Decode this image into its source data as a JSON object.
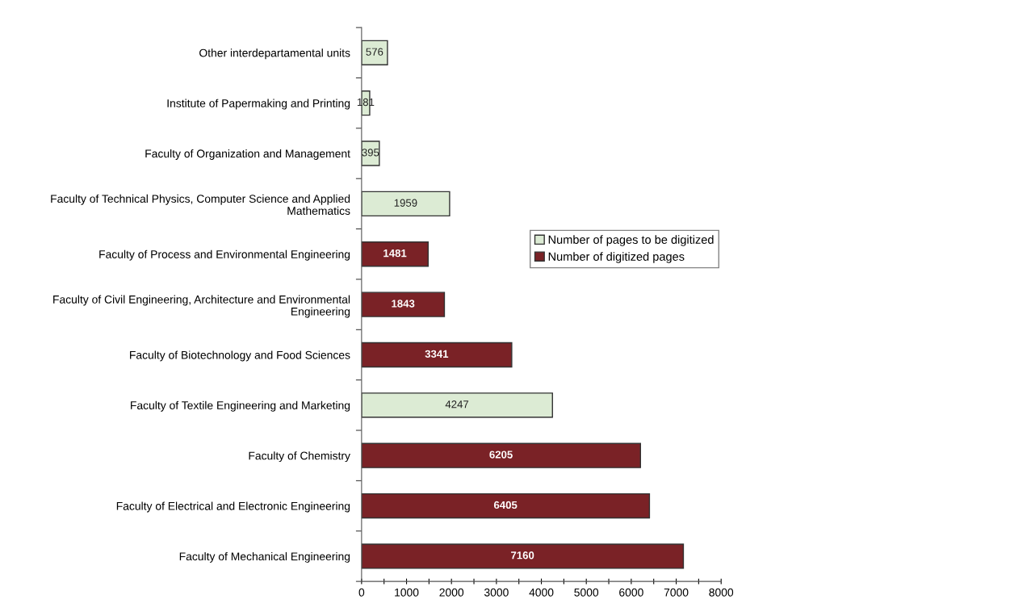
{
  "chart_data": {
    "type": "bar",
    "orientation": "horizontal",
    "categories": [
      "Other interdepartamental units",
      "Institute of Papermaking and Printing",
      "Faculty of Organization and Management",
      "Faculty of Technical Physics, Computer Science and Applied Mathematics",
      "Faculty of Process and Environmental Engineering",
      "Faculty of Civil Engineering, Architecture and Environmental Engineering",
      "Faculty of Biotechnology and Food Sciences",
      "Faculty of Textile Engineering and Marketing",
      "Faculty of Chemistry",
      "Faculty of Electrical and Electronic Engineering",
      "Faculty of Mechanical Engineering"
    ],
    "series": [
      {
        "name": "Number of pages to be digitized",
        "color": "#dcebd4",
        "values": [
          576,
          181,
          395,
          1959,
          null,
          null,
          null,
          4247,
          null,
          null,
          null
        ]
      },
      {
        "name": "Number of digitized pages",
        "color": "#7a2226",
        "values": [
          null,
          null,
          null,
          null,
          1481,
          1843,
          3341,
          null,
          6205,
          6405,
          7160
        ]
      }
    ],
    "xlim": [
      0,
      8000
    ],
    "xticks": [
      0,
      {
        "value": 500,
        "label": null
      },
      1000,
      {
        "value": 1500,
        "label": null
      },
      2000,
      {
        "value": 2500,
        "label": null
      },
      3000,
      {
        "value": 3500,
        "label": null
      },
      4000,
      {
        "value": 4500,
        "label": null
      },
      5000,
      {
        "value": 5500,
        "label": null
      },
      6000,
      {
        "value": 6500,
        "label": null
      },
      7000,
      {
        "value": 7500,
        "label": null
      },
      8000
    ],
    "data_labels": true,
    "grid": false,
    "legend": "right"
  }
}
